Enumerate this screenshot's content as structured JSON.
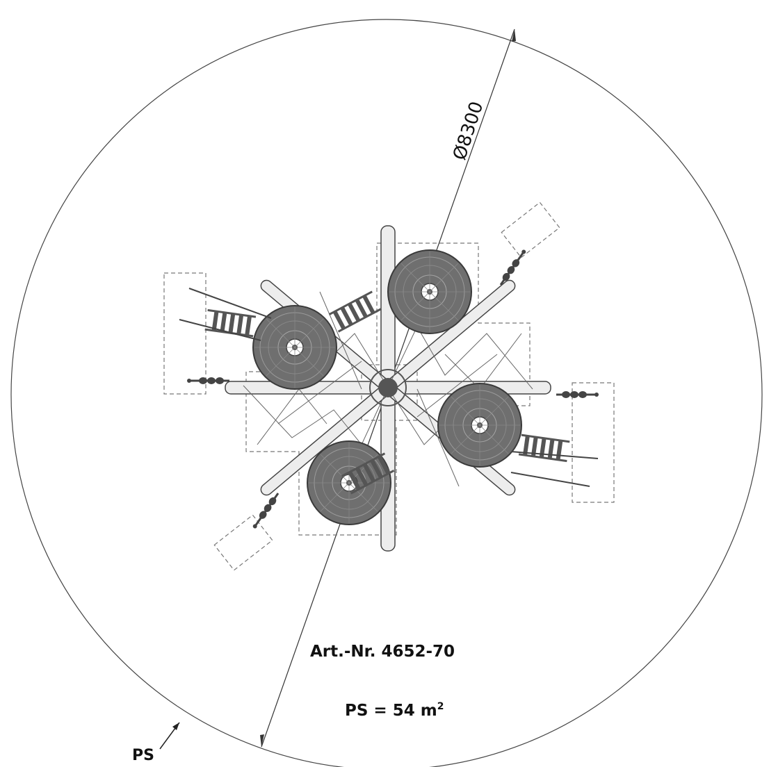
{
  "drawing": {
    "diameter_label": "Ø8300",
    "article_number": "Art.-Nr. 4652-70",
    "ps_area_prefix": "PS = 54 m",
    "ps_area_exponent": "2",
    "ps_marker": "PS"
  }
}
